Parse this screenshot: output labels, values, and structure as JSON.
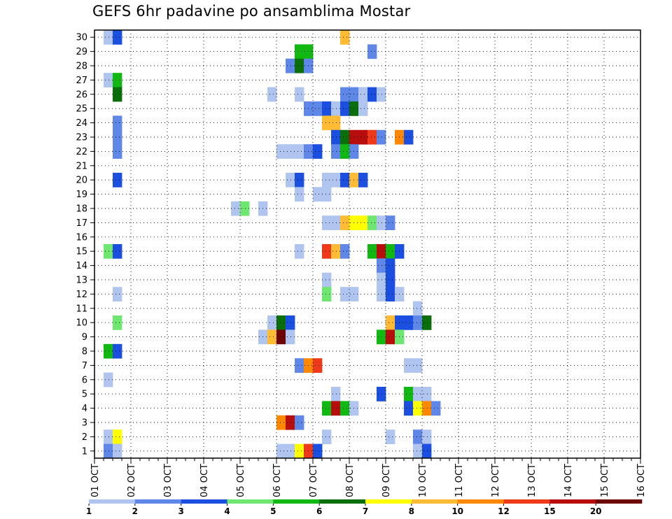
{
  "chart_data": {
    "type": "heatmap",
    "title": "GEFS 6hr padavine po ansamblima Mostar",
    "x_tick_labels": [
      "01 OCT",
      "02 OCT",
      "03 OCT",
      "04 OCT",
      "05 OCT",
      "06 OCT",
      "07 OCT",
      "08 OCT",
      "09 OCT",
      "10 OCT",
      "11 OCT",
      "12 OCT",
      "13 OCT",
      "14 OCT",
      "15 OCT",
      "16 OCT"
    ],
    "y_range": [
      1,
      30
    ],
    "x_unit": "6-hour steps from 01 OCT",
    "grid": true,
    "color_levels": [
      1,
      2,
      3,
      4,
      5,
      6,
      7,
      8,
      10,
      12,
      15,
      20
    ],
    "legend_colors": [
      "#b0c4f0",
      "#5f87e8",
      "#1a4fe0",
      "#6fe66f",
      "#12b812",
      "#0a6e0a",
      "#ffff00",
      "#ffbb33",
      "#ff8800",
      "#ee3a1a",
      "#b80d0d",
      "#6e0505"
    ],
    "cells": [
      [
        30,
        1,
        1
      ],
      [
        30,
        2,
        3
      ],
      [
        30,
        27,
        8
      ],
      [
        29,
        22,
        5
      ],
      [
        29,
        23,
        5
      ],
      [
        29,
        30,
        2
      ],
      [
        28,
        21,
        2
      ],
      [
        28,
        22,
        6
      ],
      [
        28,
        23,
        2
      ],
      [
        27,
        1,
        1
      ],
      [
        27,
        2,
        5
      ],
      [
        26,
        2,
        6
      ],
      [
        26,
        19,
        1
      ],
      [
        26,
        22,
        1
      ],
      [
        26,
        27,
        2
      ],
      [
        26,
        28,
        2
      ],
      [
        26,
        29,
        1
      ],
      [
        26,
        29,
        1
      ],
      [
        26,
        30,
        3
      ],
      [
        26,
        31,
        1
      ],
      [
        25,
        23,
        2
      ],
      [
        25,
        24,
        2
      ],
      [
        25,
        25,
        3
      ],
      [
        25,
        26,
        1
      ],
      [
        25,
        27,
        3
      ],
      [
        25,
        28,
        6
      ],
      [
        25,
        29,
        1
      ],
      [
        24,
        2,
        2
      ],
      [
        24,
        25,
        8
      ],
      [
        24,
        26,
        8
      ],
      [
        23,
        2,
        2
      ],
      [
        23,
        26,
        3
      ],
      [
        23,
        27,
        6
      ],
      [
        23,
        28,
        11
      ],
      [
        23,
        29,
        11
      ],
      [
        23,
        30,
        10
      ],
      [
        23,
        31,
        2
      ],
      [
        23,
        33,
        9
      ],
      [
        23,
        34,
        3
      ],
      [
        22,
        2,
        2
      ],
      [
        22,
        20,
        1
      ],
      [
        22,
        21,
        1
      ],
      [
        22,
        22,
        1
      ],
      [
        22,
        23,
        2
      ],
      [
        22,
        24,
        3
      ],
      [
        22,
        26,
        2
      ],
      [
        22,
        27,
        5
      ],
      [
        22,
        28,
        2
      ],
      [
        20,
        2,
        3
      ],
      [
        20,
        21,
        1
      ],
      [
        20,
        22,
        3
      ],
      [
        20,
        25,
        1
      ],
      [
        20,
        26,
        1
      ],
      [
        20,
        27,
        3
      ],
      [
        20,
        28,
        8
      ],
      [
        20,
        29,
        3
      ],
      [
        19,
        22,
        1
      ],
      [
        19,
        24,
        1
      ],
      [
        19,
        25,
        1
      ],
      [
        18,
        15,
        1
      ],
      [
        18,
        16,
        4
      ],
      [
        18,
        18,
        1
      ],
      [
        17,
        25,
        1
      ],
      [
        17,
        26,
        1
      ],
      [
        17,
        27,
        8
      ],
      [
        17,
        28,
        7
      ],
      [
        17,
        29,
        7
      ],
      [
        17,
        30,
        4
      ],
      [
        17,
        31,
        1
      ],
      [
        17,
        32,
        2
      ],
      [
        15,
        1,
        4
      ],
      [
        15,
        2,
        3
      ],
      [
        15,
        22,
        1
      ],
      [
        15,
        25,
        10
      ],
      [
        15,
        26,
        8
      ],
      [
        15,
        27,
        2
      ],
      [
        15,
        30,
        5
      ],
      [
        15,
        31,
        11
      ],
      [
        15,
        32,
        5
      ],
      [
        15,
        33,
        3
      ],
      [
        14,
        31,
        2
      ],
      [
        14,
        32,
        3
      ],
      [
        13,
        25,
        1
      ],
      [
        13,
        31,
        1
      ],
      [
        13,
        32,
        3
      ],
      [
        12,
        2,
        1
      ],
      [
        12,
        25,
        4
      ],
      [
        12,
        27,
        1
      ],
      [
        12,
        28,
        1
      ],
      [
        12,
        31,
        1
      ],
      [
        12,
        32,
        3
      ],
      [
        12,
        33,
        1
      ],
      [
        11,
        35,
        1
      ],
      [
        10,
        2,
        4
      ],
      [
        10,
        19,
        1
      ],
      [
        10,
        20,
        6
      ],
      [
        10,
        21,
        3
      ],
      [
        10,
        32,
        8
      ],
      [
        10,
        33,
        3
      ],
      [
        10,
        34,
        3
      ],
      [
        10,
        35,
        2
      ],
      [
        10,
        36,
        6
      ],
      [
        9,
        18,
        1
      ],
      [
        9,
        19,
        8
      ],
      [
        9,
        20,
        12
      ],
      [
        9,
        21,
        1
      ],
      [
        9,
        31,
        5
      ],
      [
        9,
        32,
        11
      ],
      [
        9,
        33,
        4
      ],
      [
        8,
        1,
        5
      ],
      [
        8,
        2,
        3
      ],
      [
        7,
        22,
        2
      ],
      [
        7,
        23,
        9
      ],
      [
        7,
        24,
        10
      ],
      [
        7,
        34,
        1
      ],
      [
        7,
        35,
        1
      ],
      [
        6,
        1,
        1
      ],
      [
        5,
        26,
        1
      ],
      [
        5,
        31,
        3
      ],
      [
        5,
        34,
        5
      ],
      [
        5,
        35,
        1
      ],
      [
        5,
        36,
        1
      ],
      [
        4,
        25,
        5
      ],
      [
        4,
        26,
        11
      ],
      [
        4,
        27,
        5
      ],
      [
        4,
        28,
        1
      ],
      [
        4,
        34,
        3
      ],
      [
        4,
        35,
        7
      ],
      [
        4,
        36,
        9
      ],
      [
        4,
        37,
        2
      ],
      [
        3,
        20,
        9
      ],
      [
        3,
        21,
        11
      ],
      [
        3,
        22,
        2
      ],
      [
        2,
        1,
        1
      ],
      [
        2,
        2,
        7
      ],
      [
        2,
        25,
        1
      ],
      [
        2,
        32,
        1
      ],
      [
        2,
        35,
        2
      ],
      [
        2,
        36,
        1
      ],
      [
        1,
        1,
        2
      ],
      [
        1,
        2,
        1
      ],
      [
        1,
        20,
        1
      ],
      [
        1,
        21,
        1
      ],
      [
        1,
        22,
        7
      ],
      [
        1,
        23,
        10
      ],
      [
        1,
        24,
        3
      ],
      [
        1,
        35,
        1
      ],
      [
        1,
        36,
        3
      ]
    ]
  }
}
